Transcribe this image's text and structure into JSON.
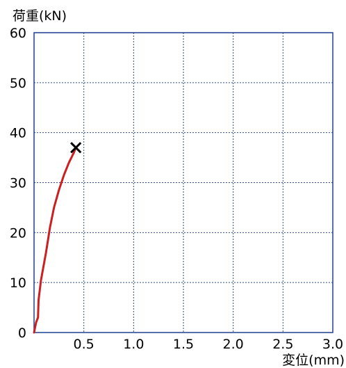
{
  "chart_data": {
    "type": "line",
    "ylabel": "荷重(kN)",
    "xlabel": "変位(mm)",
    "xlim": [
      0,
      3.0
    ],
    "ylim": [
      0,
      60
    ],
    "xticks": [
      0.5,
      1.0,
      1.5,
      2.0,
      2.5,
      3.0
    ],
    "xtick_labels": [
      "0.5",
      "1.0",
      "1.5",
      "2.0",
      "2.5",
      "3.0"
    ],
    "yticks": [
      0,
      10,
      20,
      30,
      40,
      50,
      60
    ],
    "ytick_labels": [
      "0",
      "10",
      "20",
      "30",
      "40",
      "50",
      "60"
    ],
    "grid": true,
    "series": [
      {
        "color": "#cc1f1f",
        "points": [
          [
            0,
            0
          ],
          [
            0.02,
            2
          ],
          [
            0.04,
            3
          ],
          [
            0.045,
            6.5
          ],
          [
            0.07,
            10.5
          ],
          [
            0.12,
            16
          ],
          [
            0.16,
            21
          ],
          [
            0.2,
            25
          ],
          [
            0.25,
            28.5
          ],
          [
            0.3,
            31.5
          ],
          [
            0.35,
            34
          ],
          [
            0.4,
            36
          ],
          [
            0.42,
            37
          ]
        ]
      }
    ],
    "failure_marker": {
      "x": 0.42,
      "y": 37,
      "symbol": "×"
    }
  }
}
